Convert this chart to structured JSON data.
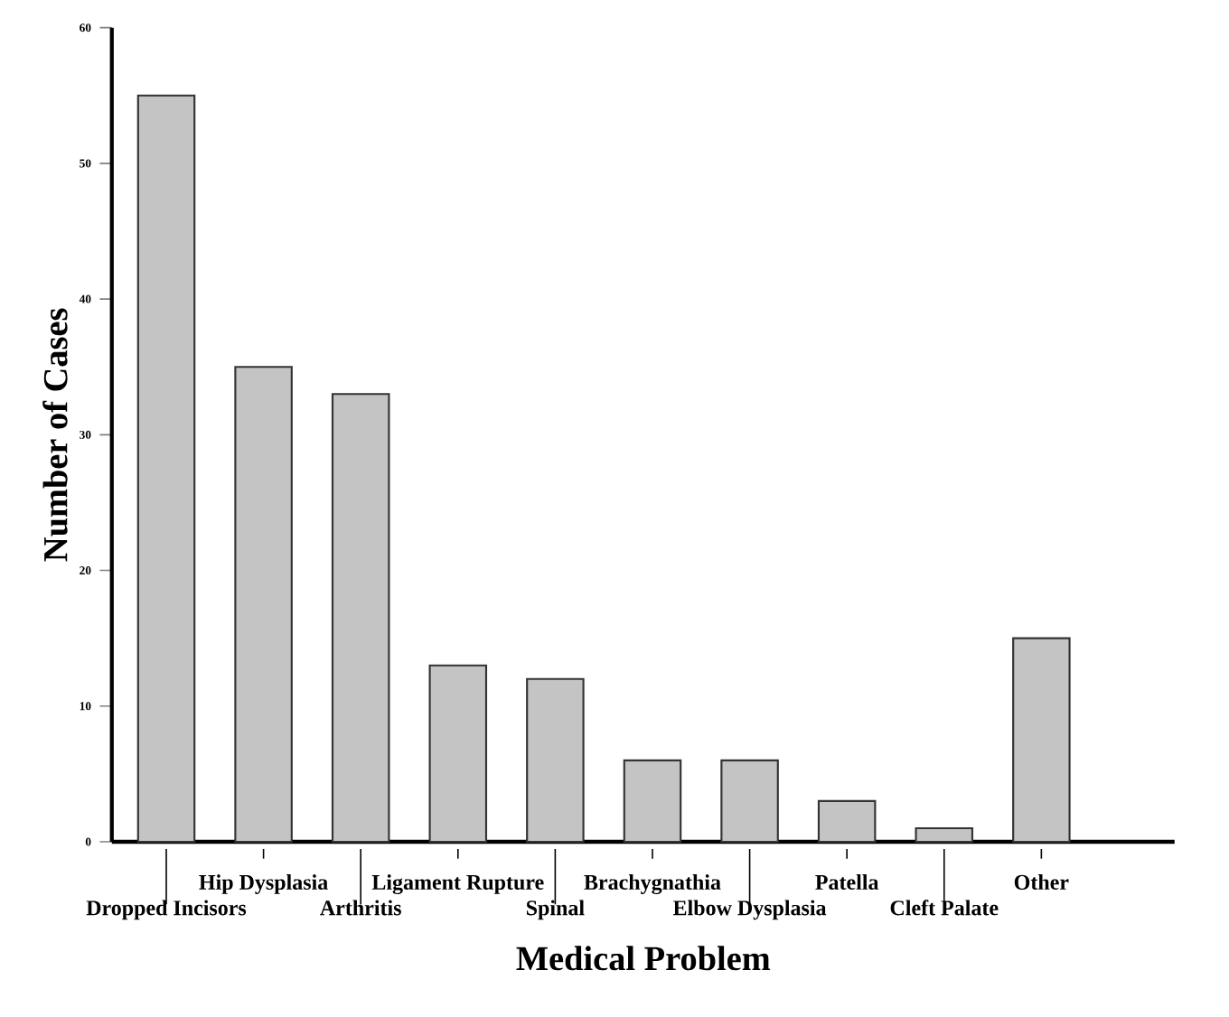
{
  "chart_data": {
    "type": "bar",
    "xlabel": "Medical Problem",
    "ylabel": "Number of Cases",
    "categories": [
      "Dropped Incisors",
      "Hip Dysplasia",
      "Arthritis",
      "Ligament Rupture",
      "Spinal",
      "Brachygnathia",
      "Elbow Dysplasia",
      "Patella",
      "Cleft Palate",
      "Other"
    ],
    "values": [
      55,
      35,
      33,
      13,
      12,
      6,
      6,
      3,
      1,
      15
    ],
    "color": "#c4c4c4",
    "ylim": [
      0,
      60
    ],
    "yticks": [
      0,
      10,
      20,
      30,
      40,
      50,
      60
    ],
    "grid": false
  }
}
